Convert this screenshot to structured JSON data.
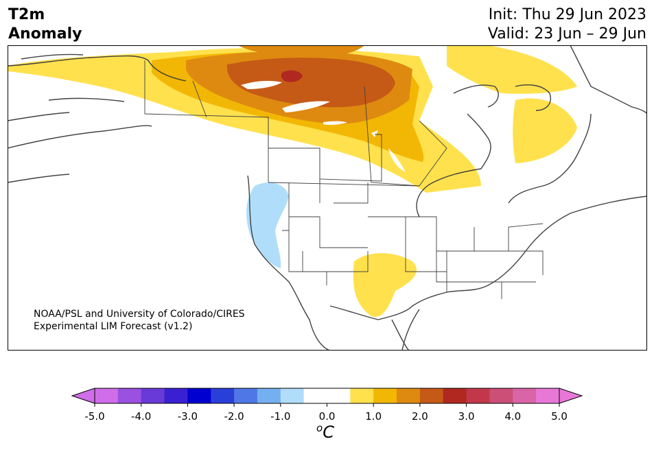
{
  "title": {
    "line1": "T2m",
    "line2": "Anomaly",
    "init": "Init: Thu 29 Jun 2023",
    "valid": "Valid: 23 Jun – 29 Jun"
  },
  "credit": {
    "line1": "NOAA/PSL and University of Colorado/CIRES",
    "line2": "Experimental LIM Forecast (v1.2)"
  },
  "colorbar": {
    "levels": [
      -5.0,
      -4.5,
      -4.0,
      -3.5,
      -3.0,
      -2.5,
      -2.0,
      -1.5,
      -1.0,
      -0.5,
      0.5,
      1.0,
      1.5,
      2.0,
      2.5,
      3.0,
      3.5,
      4.0,
      4.5,
      5.0
    ],
    "colors": [
      "#cf6ee8",
      "#9a50e0",
      "#6a3ad8",
      "#3a20d0",
      "#0000d0",
      "#2a3ed8",
      "#4f78e6",
      "#74b0f0",
      "#b0defa",
      "#ffffff",
      "#ffe14d",
      "#f2b705",
      "#de8a10",
      "#c55a16",
      "#b02820",
      "#c2384a",
      "#cc4f78",
      "#d965a8",
      "#e878d8"
    ],
    "left_color": "#cf6ee8",
    "right_color": "#e878d8",
    "tick_labels": [
      "-5.0",
      "-4.0",
      "-3.0",
      "-2.0",
      "-1.0",
      "0.0",
      "1.0",
      "2.0",
      "3.0",
      "4.0",
      "5.0"
    ],
    "tick_values": [
      -5,
      -4,
      -3,
      -2,
      -1,
      0,
      1,
      2,
      3,
      4,
      5
    ],
    "units_base": "C",
    "units_sup": "o"
  }
}
